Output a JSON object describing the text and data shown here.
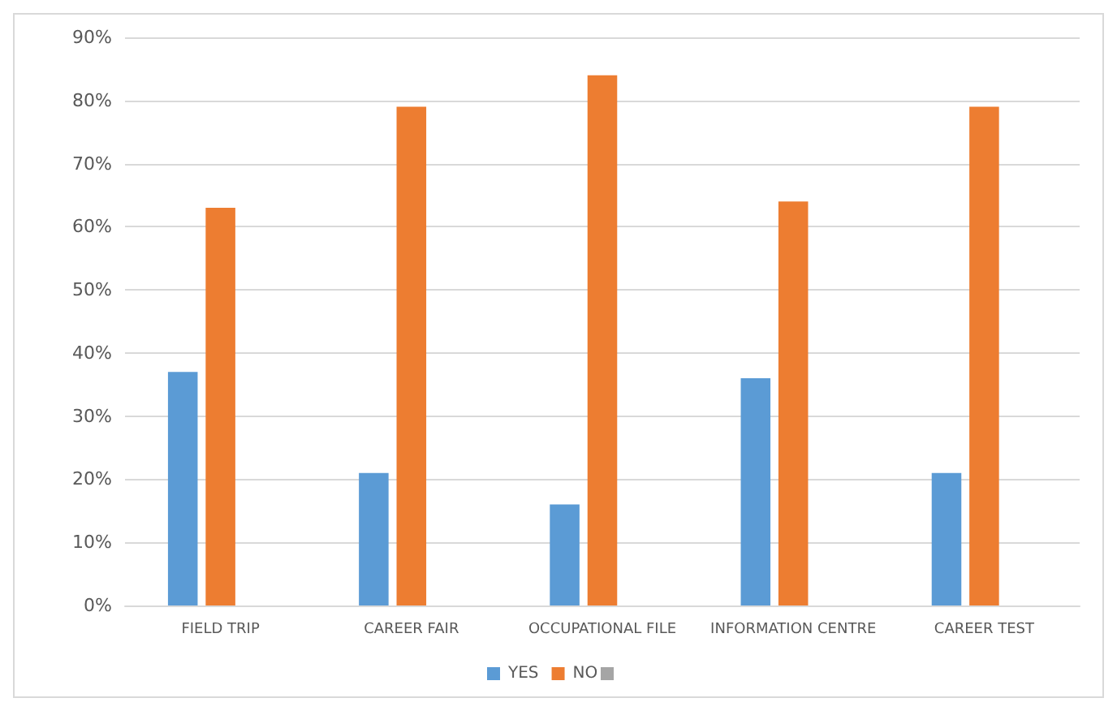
{
  "chart_data": {
    "type": "bar",
    "categories": [
      "FIELD TRIP",
      "CAREER FAIR",
      "OCCUPATIONAL FILE",
      "INFORMATION CENTRE",
      "CAREER TEST"
    ],
    "series": [
      {
        "name": "YES",
        "color": "#5b9bd5",
        "values": [
          37,
          21,
          16,
          36,
          21
        ]
      },
      {
        "name": "NO",
        "color": "#ed7d31",
        "values": [
          63,
          79,
          84,
          64,
          79
        ]
      },
      {
        "color": "#a5a5a5",
        "values": [
          null,
          null,
          null,
          null,
          null
        ]
      }
    ],
    "ylim": [
      0,
      90
    ],
    "yticks": [
      {
        "value": 0,
        "label": "0%"
      },
      {
        "value": 10,
        "label": "10%"
      },
      {
        "value": 20,
        "label": "20%"
      },
      {
        "value": 30,
        "label": "30%"
      },
      {
        "value": 40,
        "label": "40%"
      },
      {
        "value": 50,
        "label": "50%"
      },
      {
        "value": 60,
        "label": "60%"
      },
      {
        "value": 70,
        "label": "70%"
      },
      {
        "value": 80,
        "label": "80%"
      },
      {
        "value": 90,
        "label": "90%"
      }
    ],
    "grid": "y",
    "legend": "bottom"
  }
}
